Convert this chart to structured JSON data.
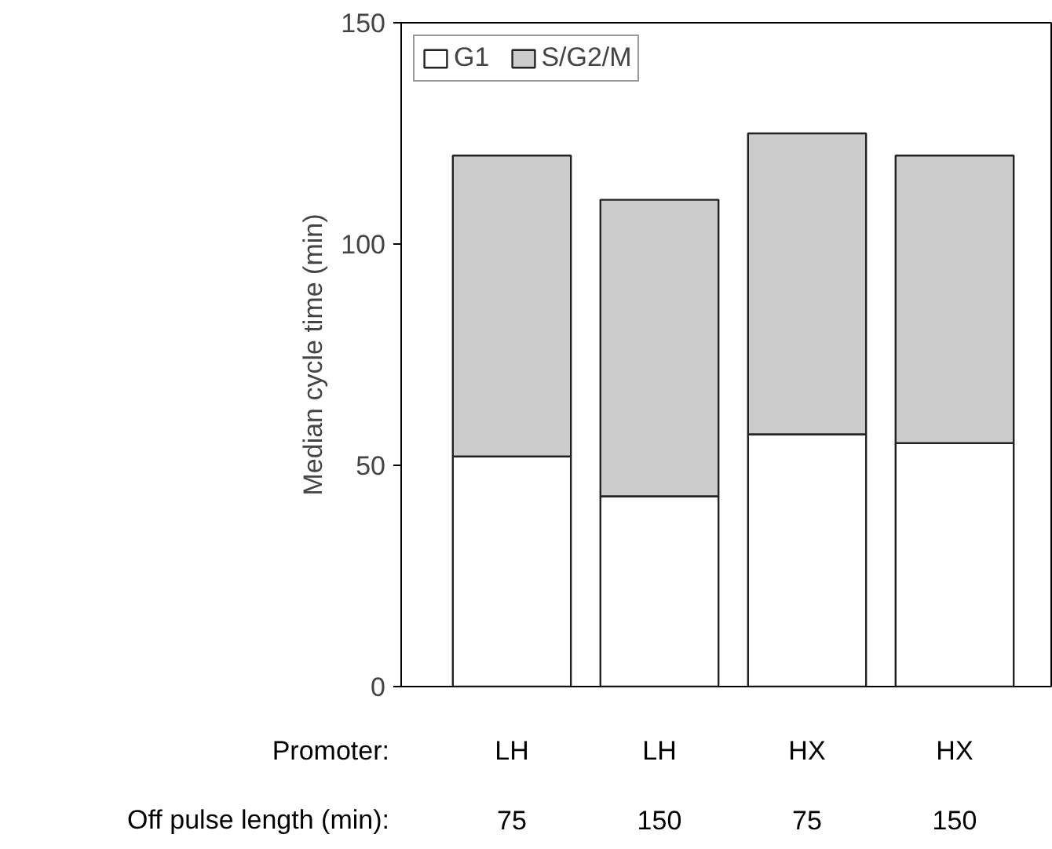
{
  "chart_data": {
    "type": "bar",
    "stacked": true,
    "ylabel": "Median cycle time (min)",
    "categories": [
      "LH\n75",
      "LH\n150",
      "HX\n75",
      "HX\n150"
    ],
    "annotations": [
      "Promoter:",
      "Off pulse length (min):"
    ],
    "series": [
      {
        "name": "G1",
        "color": "#ffffff",
        "values": [
          52,
          43,
          57,
          55
        ]
      },
      {
        "name": "S/G2/M",
        "color": "#cccccc",
        "values": [
          68,
          67,
          68,
          65
        ]
      }
    ],
    "ylim": [
      0,
      150
    ],
    "yticks": [
      0,
      50,
      100,
      150
    ],
    "grid": false,
    "legend": "top left"
  }
}
